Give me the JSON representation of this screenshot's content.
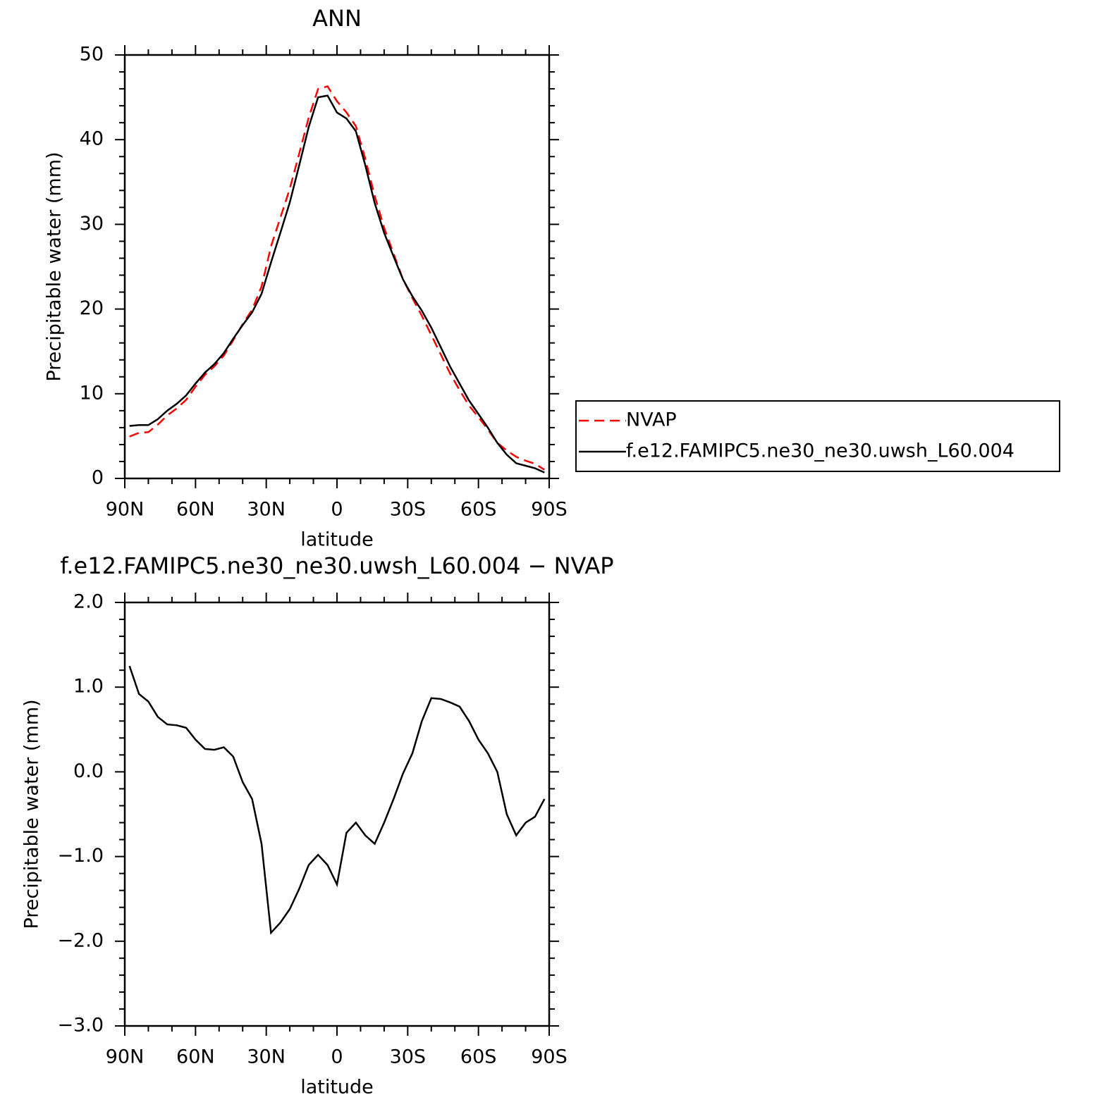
{
  "chart_data": [
    {
      "type": "line",
      "title": "ANN",
      "xlabel": "latitude",
      "ylabel": "Precipitable water (mm)",
      "x": [
        88,
        84,
        80,
        76,
        72,
        68,
        64,
        60,
        56,
        52,
        48,
        44,
        40,
        36,
        32,
        28,
        24,
        20,
        16,
        12,
        8,
        4,
        0,
        -4,
        -8,
        -12,
        -16,
        -20,
        -24,
        -28,
        -32,
        -36,
        -40,
        -44,
        -48,
        -52,
        -56,
        -60,
        -64,
        -68,
        -72,
        -76,
        -80,
        -84,
        -88
      ],
      "series": [
        {
          "name": "NVAP",
          "color": "#ff0000",
          "dash": "dashed",
          "values": [
            4.95,
            5.38,
            5.47,
            6.35,
            7.44,
            8.25,
            9.28,
            10.82,
            12.23,
            13.24,
            14.51,
            16.32,
            18.22,
            19.92,
            22.65,
            27.4,
            30.78,
            34.22,
            38.38,
            42.6,
            45.98,
            46.3,
            44.53,
            43.22,
            41.6,
            37.75,
            33.35,
            29.6,
            26.52,
            23.52,
            21.28,
            19.2,
            16.93,
            14.64,
            12.38,
            10.43,
            8.6,
            7.22,
            5.78,
            4.2,
            3.3,
            2.55,
            2.1,
            1.73,
            1.02
          ]
        },
        {
          "name": "f.e12.FAMIPC5.ne30_ne30.uwsh_L60.004",
          "color": "#000000",
          "dash": "solid",
          "values": [
            6.2,
            6.3,
            6.3,
            7.0,
            8.0,
            8.8,
            9.8,
            11.2,
            12.5,
            13.5,
            14.8,
            16.5,
            18.1,
            19.6,
            21.8,
            25.5,
            29,
            32.6,
            37,
            41.5,
            45,
            45.2,
            43.2,
            42.5,
            41,
            37,
            32.5,
            29,
            26.2,
            23.5,
            21.5,
            19.8,
            17.8,
            15.5,
            13.2,
            11.2,
            9.2,
            7.6,
            6,
            4.2,
            2.8,
            1.8,
            1.5,
            1.2,
            0.7
          ]
        }
      ],
      "xlim": [
        90,
        -90
      ],
      "xticks": [
        {
          "value": 90,
          "label": "90N"
        },
        {
          "value": 60,
          "label": "60N"
        },
        {
          "value": 30,
          "label": "30N"
        },
        0,
        {
          "value": -30,
          "label": "30S"
        },
        {
          "value": -60,
          "label": "60S"
        },
        {
          "value": -90,
          "label": "90S"
        }
      ],
      "xminorticks": [
        80,
        70,
        50,
        40,
        20,
        10,
        -10,
        -20,
        -40,
        -50,
        -70,
        -80
      ],
      "ylim": [
        0,
        50
      ],
      "yticks": [
        0,
        10,
        20,
        30,
        40,
        50
      ],
      "yminorticks": [
        2,
        4,
        6,
        8,
        12,
        14,
        16,
        18,
        22,
        24,
        26,
        28,
        32,
        34,
        36,
        38,
        42,
        44,
        46,
        48
      ],
      "legend": "right"
    },
    {
      "type": "line",
      "title": "f.e12.FAMIPC5.ne30_ne30.uwsh_L60.004 − NVAP",
      "xlabel": "latitude",
      "ylabel": "Precipitable water (mm)",
      "x": [
        88,
        84,
        80,
        76,
        72,
        68,
        64,
        60,
        56,
        52,
        48,
        44,
        40,
        36,
        32,
        28,
        24,
        20,
        16,
        12,
        8,
        4,
        0,
        -4,
        -8,
        -12,
        -16,
        -20,
        -24,
        -28,
        -32,
        -36,
        -40,
        -44,
        -48,
        -52,
        -56,
        -60,
        -64,
        -68,
        -72,
        -76,
        -80,
        -84,
        -88
      ],
      "color": "#000000",
      "values": [
        1.25,
        0.92,
        0.83,
        0.65,
        0.56,
        0.55,
        0.52,
        0.38,
        0.27,
        0.26,
        0.29,
        0.18,
        -0.12,
        -0.32,
        -0.85,
        -1.9,
        -1.78,
        -1.62,
        -1.38,
        -1.1,
        -0.98,
        -1.1,
        -1.33,
        -0.72,
        -0.6,
        -0.75,
        -0.85,
        -0.6,
        -0.32,
        -0.02,
        0.22,
        0.6,
        0.87,
        0.86,
        0.82,
        0.77,
        0.6,
        0.38,
        0.22,
        0.0,
        -0.5,
        -0.75,
        -0.6,
        -0.53,
        -0.32
      ],
      "xlim": [
        90,
        -90
      ],
      "xticks": [
        {
          "value": 90,
          "label": "90N"
        },
        {
          "value": 60,
          "label": "60N"
        },
        {
          "value": 30,
          "label": "30N"
        },
        0,
        {
          "value": -30,
          "label": "30S"
        },
        {
          "value": -60,
          "label": "60S"
        },
        {
          "value": -90,
          "label": "90S"
        }
      ],
      "xminorticks": [
        80,
        70,
        50,
        40,
        20,
        10,
        -10,
        -20,
        -40,
        -50,
        -70,
        -80
      ],
      "ylim": [
        -3,
        2
      ],
      "yticks": [
        {
          "value": -3,
          "label": "−3.0"
        },
        {
          "value": -2,
          "label": "−2.0"
        },
        {
          "value": -1,
          "label": "−1.0"
        },
        {
          "value": 0,
          "label": "0.0"
        },
        {
          "value": 1,
          "label": "1.0"
        },
        {
          "value": 2,
          "label": "2.0"
        }
      ],
      "yminorticks": [
        -2.8,
        -2.6,
        -2.4,
        -2.2,
        -1.8,
        -1.6,
        -1.4,
        -1.2,
        -0.8,
        -0.6,
        -0.4,
        -0.2,
        0.2,
        0.4,
        0.6,
        0.8,
        1.2,
        1.4,
        1.6,
        1.8
      ]
    }
  ]
}
